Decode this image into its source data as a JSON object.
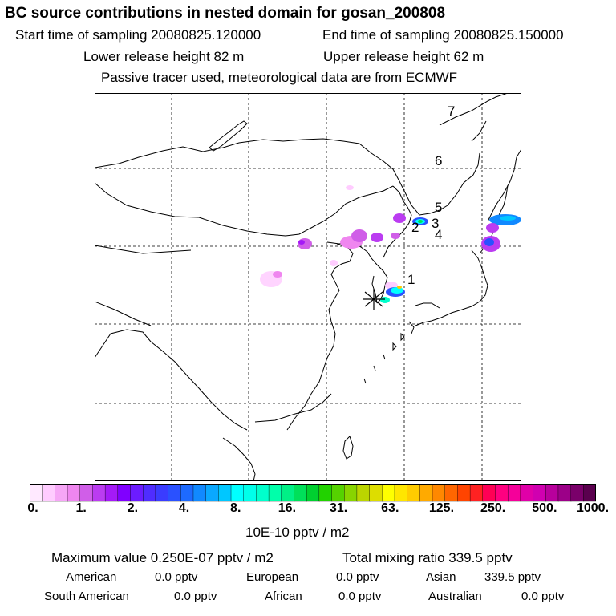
{
  "title": "BC  source contributions in nested domain for gosan_200808",
  "sampling": {
    "start": "Start time of sampling 20080825.120000",
    "end": "End time of sampling 20080825.150000"
  },
  "release": {
    "lower": "Lower release height   82 m",
    "upper": "Upper release height   62 m"
  },
  "note": "Passive tracer used, meteorological data are from ECMWF",
  "map": {
    "trajectory_labels": [
      "1",
      "2",
      "3",
      "4",
      "5",
      "6",
      "7"
    ],
    "receptor": "gosan",
    "colors": {
      "coast": "#000000",
      "grid": "#000000"
    }
  },
  "colorbar": {
    "ticks": [
      "0.",
      "1.",
      "2.",
      "4.",
      "8.",
      "16.",
      "31.",
      "63.",
      "125.",
      "250.",
      "500.",
      "1000."
    ],
    "unit": "10E-10 pptv / m2",
    "colors": [
      "#ffe9ff",
      "#ffccff",
      "#f6a6f6",
      "#ef86ef",
      "#d05ee8",
      "#bb3cf1",
      "#a41af7",
      "#8000ff",
      "#6c1cff",
      "#4f2dff",
      "#3a3cff",
      "#2a51ff",
      "#1d6aff",
      "#1189ff",
      "#0aa8ff",
      "#00c7ff",
      "#00ffff",
      "#00ffea",
      "#00ffcc",
      "#00ffaa",
      "#00f086",
      "#00e05a",
      "#00d030",
      "#22d200",
      "#55d200",
      "#88d400",
      "#bbd500",
      "#dddd00",
      "#ffff00",
      "#ffe600",
      "#ffcc00",
      "#ffaa00",
      "#ff8800",
      "#ff6600",
      "#ff4400",
      "#ff2222",
      "#ff0055",
      "#ff0080",
      "#f5009a",
      "#e000a8",
      "#d000b0",
      "#b8009c",
      "#9c0088",
      "#7a006a",
      "#5a004e"
    ]
  },
  "footer": {
    "maximum": "Maximum value  0.250E-07 pptv / m2",
    "total": "Total mixing ratio      339.5 pptv",
    "regions": [
      {
        "label": "American",
        "value": "0.0 pptv"
      },
      {
        "label": "European",
        "value": "0.0 pptv"
      },
      {
        "label": "Asian",
        "value": "339.5 pptv"
      },
      {
        "label": "South American",
        "value": "0.0 pptv"
      },
      {
        "label": "African",
        "value": "0.0 pptv"
      },
      {
        "label": "Australian",
        "value": "0.0 pptv"
      }
    ]
  }
}
